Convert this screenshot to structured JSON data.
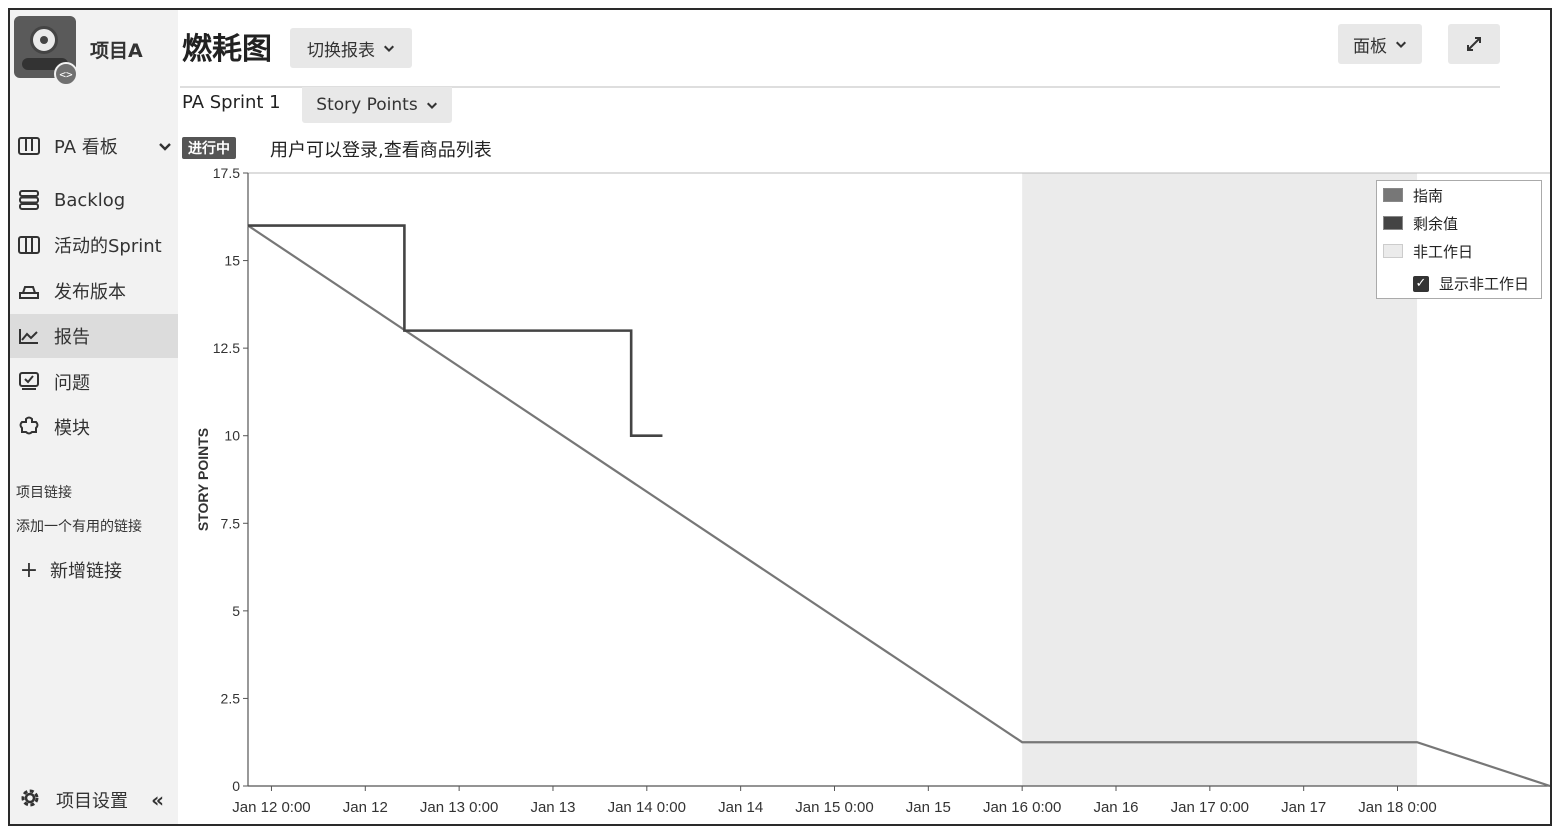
{
  "project": {
    "name": "项目A",
    "badge": "<>"
  },
  "sidebar": {
    "board_selector": "PA 看板",
    "items": [
      {
        "label": "Backlog",
        "icon": "backlog-icon"
      },
      {
        "label": "活动的Sprint",
        "icon": "active-sprint-icon"
      },
      {
        "label": "发布版本",
        "icon": "release-icon"
      },
      {
        "label": "报告",
        "icon": "reports-icon",
        "active": true
      },
      {
        "label": "问题",
        "icon": "issues-icon"
      },
      {
        "label": "模块",
        "icon": "components-icon"
      }
    ],
    "links_title": "项目链接",
    "links_subtitle": "添加一个有用的链接",
    "add_link": "新增链接",
    "settings": "项目设置",
    "collapse": "«"
  },
  "header": {
    "title": "燃耗图",
    "switch_report": "切换报表",
    "board_button": "面板",
    "sprint": "PA Sprint 1",
    "estimate": "Story Points",
    "status_lozenge": "进行中",
    "sprint_goal": "用户可以登录,查看商品列表"
  },
  "chart_data": {
    "type": "line",
    "ylabel": "STORY POINTS",
    "ylim": [
      0,
      17.5
    ],
    "yticks": [
      "17.5",
      "15",
      "12.5",
      "10",
      "7.5",
      "5",
      "2.5",
      "0"
    ],
    "xticks": [
      "Jan 12 0:00",
      "Jan 12",
      "Jan 13 0:00",
      "Jan 13",
      "Jan 14 0:00",
      "Jan 14",
      "Jan 15 0:00",
      "Jan 15",
      "Jan 16 0:00",
      "Jan 16",
      "Jan 17 0:00",
      "Jan 17",
      "Jan 18 0:00"
    ],
    "xlim_hours": [
      -3,
      163.5
    ],
    "nonworking_hours": [
      96,
      146.5
    ],
    "series": [
      {
        "name": "指南",
        "color": "#777777",
        "x_hours": [
          -3,
          96,
          146.5,
          163.5
        ],
        "values": [
          16,
          1.25,
          1.25,
          0
        ]
      },
      {
        "name": "剩余值",
        "color": "#444444",
        "x_hours": [
          -3,
          17,
          17,
          46,
          46,
          50
        ],
        "values": [
          16,
          16,
          13,
          13,
          10,
          10
        ]
      }
    ],
    "legend": {
      "position": "top-right",
      "items": [
        {
          "label": "指南",
          "color": "#777777"
        },
        {
          "label": "剩余值",
          "color": "#444444"
        },
        {
          "label": "非工作日",
          "color": "#ebebeb"
        }
      ],
      "show_nonworking": "显示非工作日",
      "show_nonworking_checked": true
    }
  }
}
